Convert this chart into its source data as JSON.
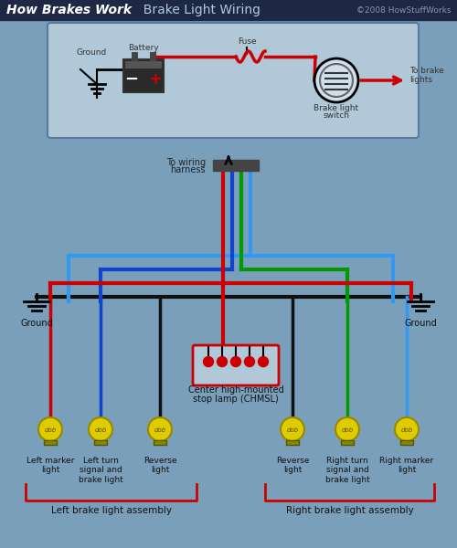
{
  "title_bold": "How Brakes Work",
  "title_normal": "  Brake Light Wiring",
  "copyright": "©2008 HowStuffWorks",
  "bg_color": "#7a9fba",
  "header_bg": "#1e2845",
  "box_bg": "#b0c8d8",
  "box_border": "#5a7a9a",
  "wire_red": "#cc0000",
  "wire_black": "#111111",
  "wire_blue": "#1144cc",
  "wire_green": "#009900",
  "wire_lightblue": "#3399ee",
  "bulb_color": "#ddcc00",
  "bulb_edge": "#998800",
  "label_color": "#111111",
  "ground_color": "#222222",
  "conn_color": "#444444",
  "battery_body": "#2a2a2a",
  "chmsl_fill": "#b0c8d8"
}
